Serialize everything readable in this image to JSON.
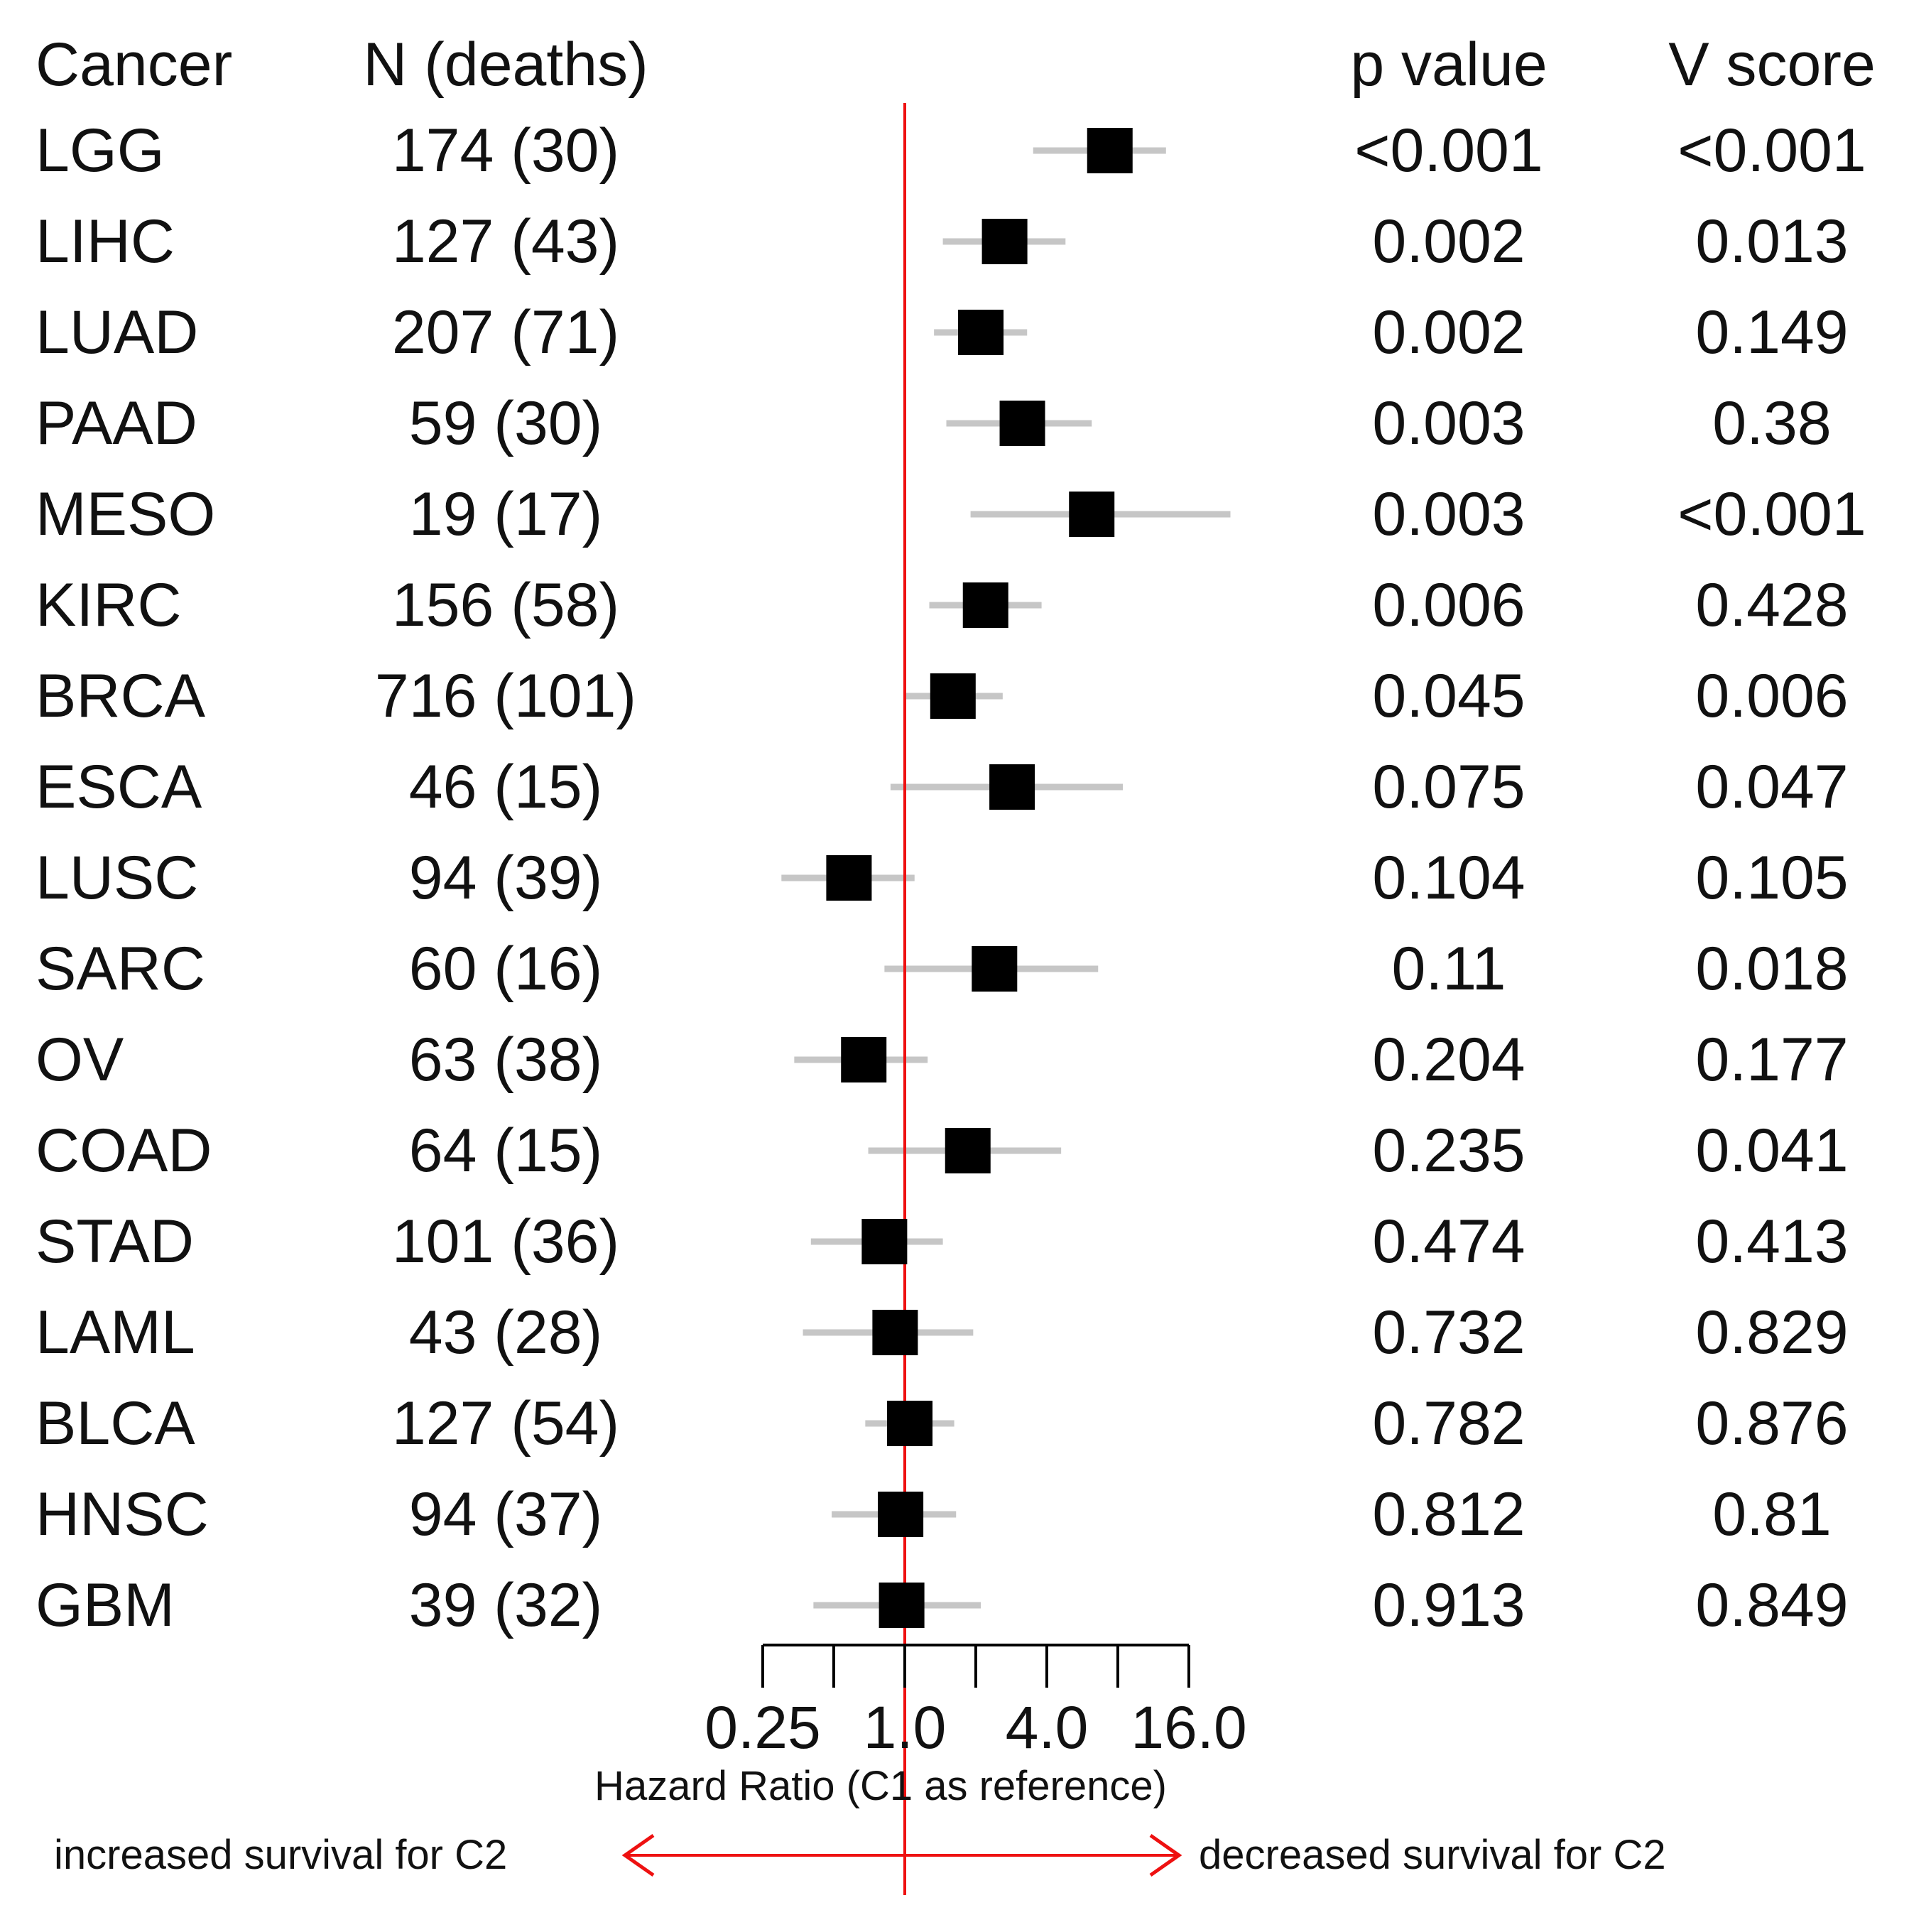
{
  "chart_data": {
    "type": "forest",
    "headers": {
      "cancer": "Cancer",
      "n": "N (deaths)",
      "p": "p value",
      "v": "V score"
    },
    "rows": [
      {
        "cancer": "LGG",
        "n": "174 (30)",
        "p": "<0.001",
        "v": "<0.001",
        "hr": 7.4,
        "lo": 3.5,
        "hi": 12.8
      },
      {
        "cancer": "LIHC",
        "n": "127 (43)",
        "p": "0.002",
        "v": "0.013",
        "hr": 2.65,
        "lo": 1.45,
        "hi": 4.8
      },
      {
        "cancer": "LUAD",
        "n": "207 (71)",
        "p": "0.002",
        "v": "0.149",
        "hr": 2.1,
        "lo": 1.33,
        "hi": 3.3
      },
      {
        "cancer": "PAAD",
        "n": "59 (30)",
        "p": "0.003",
        "v": "0.38",
        "hr": 3.15,
        "lo": 1.5,
        "hi": 6.2
      },
      {
        "cancer": "MESO",
        "n": "19 (17)",
        "p": "0.003",
        "v": "<0.001",
        "hr": 6.2,
        "lo": 1.9,
        "hi": 24.0
      },
      {
        "cancer": "KIRC",
        "n": "156 (58)",
        "p": "0.006",
        "v": "0.428",
        "hr": 2.2,
        "lo": 1.27,
        "hi": 3.8
      },
      {
        "cancer": "BRCA",
        "n": "716 (101)",
        "p": "0.045",
        "v": "0.006",
        "hr": 1.6,
        "lo": 1.01,
        "hi": 2.6
      },
      {
        "cancer": "ESCA",
        "n": "46 (15)",
        "p": "0.075",
        "v": "0.047",
        "hr": 2.85,
        "lo": 0.87,
        "hi": 8.4
      },
      {
        "cancer": "LUSC",
        "n": "94 (39)",
        "p": "0.104",
        "v": "0.105",
        "hr": 0.58,
        "lo": 0.3,
        "hi": 1.1
      },
      {
        "cancer": "SARC",
        "n": "60 (16)",
        "p": "0.11",
        "v": "0.018",
        "hr": 2.4,
        "lo": 0.82,
        "hi": 6.6
      },
      {
        "cancer": "OV",
        "n": "63 (38)",
        "p": "0.204",
        "v": "0.177",
        "hr": 0.67,
        "lo": 0.34,
        "hi": 1.25
      },
      {
        "cancer": "COAD",
        "n": "64 (15)",
        "p": "0.235",
        "v": "0.041",
        "hr": 1.85,
        "lo": 0.7,
        "hi": 4.6
      },
      {
        "cancer": "STAD",
        "n": "101 (36)",
        "p": "0.474",
        "v": "0.413",
        "hr": 0.82,
        "lo": 0.4,
        "hi": 1.45
      },
      {
        "cancer": "LAML",
        "n": "43 (28)",
        "p": "0.732",
        "v": "0.829",
        "hr": 0.91,
        "lo": 0.37,
        "hi": 1.95
      },
      {
        "cancer": "BLCA",
        "n": "127 (54)",
        "p": "0.782",
        "v": "0.876",
        "hr": 1.05,
        "lo": 0.68,
        "hi": 1.62
      },
      {
        "cancer": "HNSC",
        "n": "94 (37)",
        "p": "0.812",
        "v": "0.81",
        "hr": 0.96,
        "lo": 0.49,
        "hi": 1.65
      },
      {
        "cancer": "GBM",
        "n": "39 (32)",
        "p": "0.913",
        "v": "0.849",
        "hr": 0.97,
        "lo": 0.41,
        "hi": 2.1
      }
    ],
    "x_axis": {
      "scale": "log2",
      "range": [
        0.25,
        16.0
      ],
      "tick_values": [
        0.25,
        0.5,
        1.0,
        2.0,
        4.0,
        8.0,
        16.0
      ],
      "tick_labels": [
        {
          "value": 0.25,
          "label": "0.25"
        },
        {
          "value": 1.0,
          "label": "1.0"
        },
        {
          "value": 4.0,
          "label": "4.0"
        },
        {
          "value": 16.0,
          "label": "16.0"
        }
      ],
      "label": "Hazard Ratio (C1 as reference)"
    },
    "reference_line": 1.0,
    "annotations": {
      "left": "increased survival for C2",
      "right": "decreased survival for C2"
    },
    "colors": {
      "reference": "#ee1111",
      "ci": "#c6c6c6",
      "marker": "#000000",
      "text": "#111111"
    }
  }
}
